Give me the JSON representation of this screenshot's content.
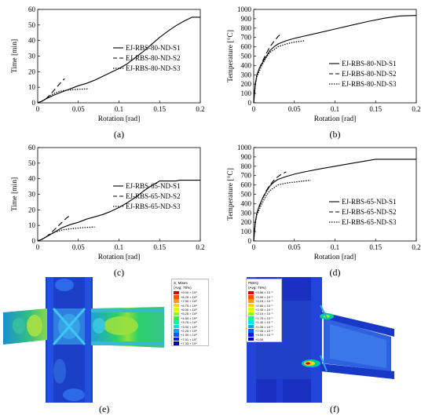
{
  "chart_data": [
    {
      "id": "a",
      "type": "line",
      "caption": "(a)",
      "xlabel": "Rotation [rad]",
      "ylabel": "Time [min]",
      "xlim": [
        0,
        0.2
      ],
      "ylim": [
        0,
        60
      ],
      "xticks": [
        "0",
        "0.05",
        "0.1",
        "0.15",
        "0.2"
      ],
      "yticks": [
        "0",
        "10",
        "20",
        "30",
        "40",
        "50",
        "60"
      ],
      "legend": "center-right",
      "series": [
        {
          "name": "EJ-RBS-80-ND-S1",
          "style": "solid",
          "x": [
            0,
            0.005,
            0.01,
            0.02,
            0.03,
            0.04,
            0.05,
            0.06,
            0.07,
            0.08,
            0.09,
            0.1,
            0.11,
            0.12,
            0.13,
            0.14,
            0.15,
            0.16,
            0.17,
            0.18,
            0.19,
            0.2
          ],
          "y": [
            0,
            1,
            2.5,
            5,
            7,
            9,
            11,
            12.5,
            14.5,
            17,
            19.5,
            22,
            25,
            29,
            33,
            37.5,
            42,
            46,
            49.5,
            52.5,
            55,
            55
          ]
        },
        {
          "name": "EJ-RBS-80-ND-S2",
          "style": "dashed",
          "x": [
            0,
            0.005,
            0.01,
            0.015,
            0.02,
            0.025,
            0.03,
            0.033
          ],
          "y": [
            0,
            1,
            2.5,
            5,
            8,
            11,
            14,
            15.5
          ]
        },
        {
          "name": "EJ-RBS-80-ND-S3",
          "style": "dotted",
          "x": [
            0,
            0.005,
            0.01,
            0.015,
            0.02,
            0.025,
            0.03,
            0.04,
            0.05,
            0.063
          ],
          "y": [
            0,
            1,
            2.5,
            4.5,
            6,
            7,
            7.7,
            8.3,
            8.7,
            9
          ]
        }
      ]
    },
    {
      "id": "b",
      "type": "line",
      "caption": "(b)",
      "xlabel": "Rotation [rad]",
      "ylabel": "Temperature [°C]",
      "xlim": [
        0,
        0.2
      ],
      "ylim": [
        0,
        1000
      ],
      "xticks": [
        "0",
        "0.05",
        "0.1",
        "0.15",
        "0.2"
      ],
      "yticks": [
        "0",
        "100",
        "200",
        "300",
        "400",
        "500",
        "600",
        "700",
        "800",
        "900",
        "1000"
      ],
      "legend": "bottom-right",
      "series": [
        {
          "name": "EJ-RBS-80-ND-S1",
          "style": "solid",
          "x": [
            0,
            0.001,
            0.002,
            0.004,
            0.007,
            0.01,
            0.015,
            0.02,
            0.025,
            0.03,
            0.04,
            0.05,
            0.06,
            0.08,
            0.1,
            0.12,
            0.14,
            0.16,
            0.18,
            0.2
          ],
          "y": [
            0,
            100,
            200,
            300,
            370,
            420,
            490,
            560,
            600,
            630,
            665,
            690,
            710,
            750,
            790,
            830,
            870,
            905,
            930,
            935
          ]
        },
        {
          "name": "EJ-RBS-80-ND-S2",
          "style": "dashed",
          "x": [
            0,
            0.001,
            0.002,
            0.004,
            0.007,
            0.01,
            0.015,
            0.02,
            0.025,
            0.03,
            0.033
          ],
          "y": [
            0,
            100,
            200,
            300,
            370,
            430,
            520,
            600,
            660,
            710,
            735
          ]
        },
        {
          "name": "EJ-RBS-80-ND-S3",
          "style": "dotted",
          "x": [
            0,
            0.001,
            0.002,
            0.004,
            0.007,
            0.01,
            0.015,
            0.02,
            0.03,
            0.04,
            0.05,
            0.063
          ],
          "y": [
            0,
            100,
            200,
            280,
            340,
            400,
            480,
            540,
            600,
            630,
            650,
            665
          ]
        }
      ]
    },
    {
      "id": "c",
      "type": "line",
      "caption": "(c)",
      "xlabel": "Rotation [rad]",
      "ylabel": "Time [min]",
      "xlim": [
        0,
        0.2
      ],
      "ylim": [
        0,
        60
      ],
      "xticks": [
        "0",
        "0.05",
        "0.1",
        "0.15",
        "0.2"
      ],
      "yticks": [
        "0",
        "10",
        "20",
        "30",
        "40",
        "50",
        "60"
      ],
      "legend": "center-right",
      "series": [
        {
          "name": "EJ-RBS-65-ND-S1",
          "style": "solid",
          "x": [
            0,
            0.005,
            0.01,
            0.02,
            0.03,
            0.04,
            0.05,
            0.06,
            0.07,
            0.08,
            0.09,
            0.1,
            0.11,
            0.12,
            0.13,
            0.14,
            0.15,
            0.16,
            0.17,
            0.175,
            0.2
          ],
          "y": [
            0,
            1,
            2.5,
            5.5,
            8.5,
            10.5,
            12,
            14,
            15.5,
            17,
            19,
            21.5,
            24.5,
            28,
            32,
            35.5,
            38.5,
            38.5,
            38.5,
            39,
            39
          ]
        },
        {
          "name": "EJ-RBS-65-ND-S2",
          "style": "dashed",
          "x": [
            0,
            0.005,
            0.01,
            0.015,
            0.02,
            0.025,
            0.03,
            0.035,
            0.04
          ],
          "y": [
            0,
            1,
            2.5,
            4.5,
            7,
            9.5,
            12,
            14.5,
            16.5
          ]
        },
        {
          "name": "EJ-RBS-65-ND-S3",
          "style": "dotted",
          "x": [
            0,
            0.005,
            0.01,
            0.015,
            0.02,
            0.03,
            0.04,
            0.05,
            0.06,
            0.07
          ],
          "y": [
            0,
            1,
            2.5,
            4,
            5.5,
            7,
            7.8,
            8.3,
            8.7,
            9
          ]
        }
      ]
    },
    {
      "id": "d",
      "type": "line",
      "caption": "(d)",
      "xlabel": "Rotation [rad]",
      "ylabel": "Temperature [°C]",
      "xlim": [
        0,
        0.2
      ],
      "ylim": [
        0,
        1000
      ],
      "xticks": [
        "0",
        "0.05",
        "0.1",
        "0.15",
        "0.2"
      ],
      "yticks": [
        "0",
        "100",
        "200",
        "300",
        "400",
        "500",
        "600",
        "700",
        "800",
        "900",
        "1000"
      ],
      "legend": "bottom-right",
      "series": [
        {
          "name": "EJ-RBS-65-ND-S1",
          "style": "solid",
          "x": [
            0,
            0.001,
            0.002,
            0.004,
            0.007,
            0.01,
            0.015,
            0.02,
            0.025,
            0.03,
            0.04,
            0.05,
            0.06,
            0.08,
            0.1,
            0.12,
            0.14,
            0.15,
            0.17,
            0.2
          ],
          "y": [
            0,
            100,
            200,
            300,
            380,
            440,
            520,
            590,
            630,
            660,
            690,
            715,
            735,
            770,
            800,
            830,
            860,
            875,
            875,
            875
          ]
        },
        {
          "name": "EJ-RBS-65-ND-S2",
          "style": "dashed",
          "x": [
            0,
            0.001,
            0.002,
            0.004,
            0.007,
            0.01,
            0.015,
            0.02,
            0.025,
            0.03,
            0.035,
            0.04
          ],
          "y": [
            0,
            100,
            200,
            300,
            370,
            440,
            530,
            600,
            650,
            690,
            720,
            740
          ]
        },
        {
          "name": "EJ-RBS-65-ND-S3",
          "style": "dotted",
          "x": [
            0,
            0.001,
            0.002,
            0.004,
            0.007,
            0.01,
            0.015,
            0.02,
            0.03,
            0.04,
            0.05,
            0.06,
            0.07
          ],
          "y": [
            0,
            100,
            200,
            280,
            340,
            400,
            480,
            540,
            600,
            620,
            630,
            640,
            650
          ]
        }
      ]
    }
  ],
  "simulations": [
    {
      "id": "e",
      "caption": "(e)",
      "legend_title": "S, Mises",
      "legend_subtitle": "(Avg: 75%)",
      "legend_values": [
        "+9.00 × 10⁸",
        "+8.25 × 10⁸",
        "+7.50 × 10⁸",
        "+6.75 × 10⁸",
        "+6.00 × 10⁸",
        "+5.25 × 10⁸",
        "+4.50 × 10⁸",
        "+3.75 × 10⁸",
        "+3.00 × 10⁸",
        "+2.25 × 10⁸",
        "+1.50 × 10⁸",
        "+7.51 × 10⁷",
        "+7.33 × 10⁴"
      ]
    },
    {
      "id": "f",
      "caption": "(f)",
      "legend_title": "PEEQ",
      "legend_subtitle": "(Avg: 75%)",
      "legend_values": [
        "+3.86 × 10⁻¹",
        "+3.50 × 10⁻¹",
        "+3.15 × 10⁻¹",
        "+2.80 × 10⁻¹",
        "+2.45 × 10⁻¹",
        "+2.10 × 10⁻¹",
        "+1.75 × 10⁻¹",
        "+1.40 × 10⁻¹",
        "+1.05 × 10⁻¹",
        "+7.00 × 10⁻²",
        "+3.50 × 10⁻²",
        "+0.00"
      ]
    }
  ],
  "legend_scale_colors": [
    "#d40000",
    "#ff4d00",
    "#ff9a00",
    "#ffd700",
    "#d8ff00",
    "#8cff00",
    "#25ff3a",
    "#00ff9a",
    "#00e6e6",
    "#00a8ff",
    "#0060ff",
    "#0020e0",
    "#0000b0"
  ]
}
